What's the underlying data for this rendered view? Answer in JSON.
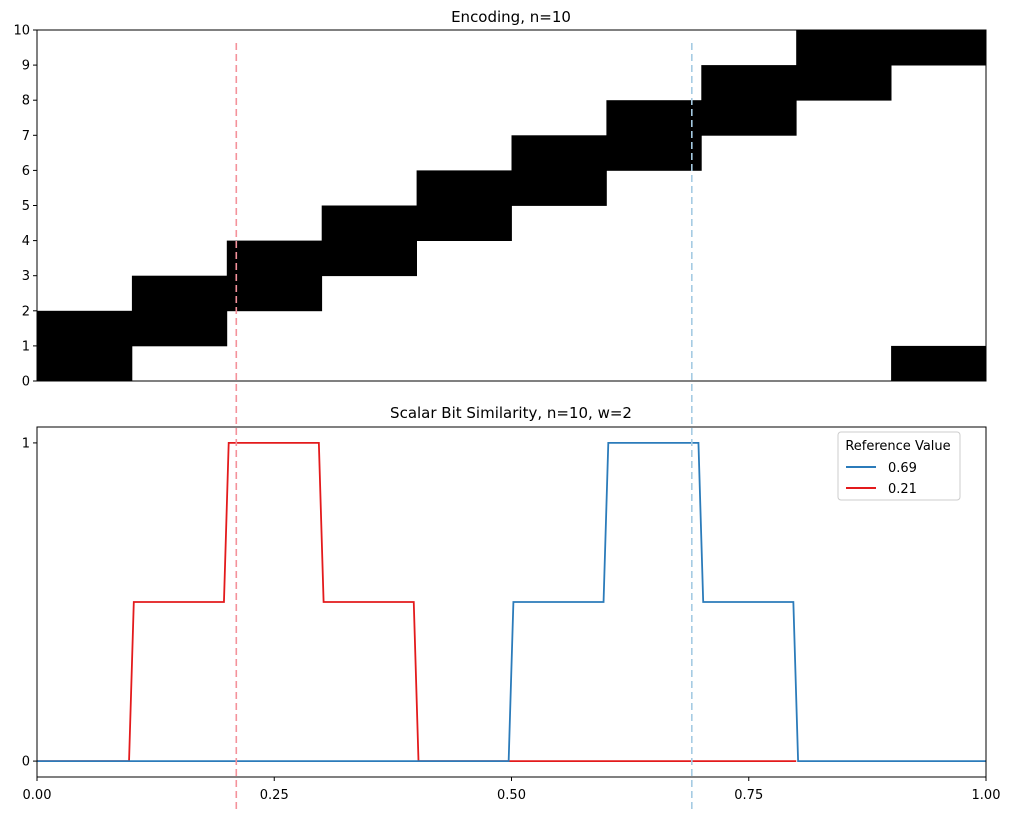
{
  "chart_data": [
    {
      "type": "heatmap",
      "title": "Encoding, n=10",
      "xlim": [
        0,
        1
      ],
      "ylim": [
        0,
        10
      ],
      "yticks": [
        "0",
        "1",
        "2",
        "3",
        "4",
        "5",
        "6",
        "7",
        "8",
        "9",
        "10"
      ],
      "bins": 10,
      "active_bits": [
        [
          0,
          1
        ],
        [
          1,
          2
        ],
        [
          2,
          3
        ],
        [
          3,
          4
        ],
        [
          4,
          5
        ],
        [
          5,
          6
        ],
        [
          6,
          7
        ],
        [
          7,
          8
        ],
        [
          8,
          9
        ],
        [
          9,
          0
        ]
      ],
      "reference_lines": [
        {
          "x": 0.21,
          "color": "#f4929b"
        },
        {
          "x": 0.69,
          "color": "#a6cbe3"
        }
      ]
    },
    {
      "type": "line",
      "title": "Scalar Bit Similarity, n=10, w=2",
      "xlim": [
        0,
        1
      ],
      "ylim": [
        -0.05,
        1.05
      ],
      "yticks": [
        "0",
        "1"
      ],
      "xticks": [
        "0.00",
        "0.25",
        "0.50",
        "0.75",
        "1.00"
      ],
      "legend": {
        "title": "Reference Value",
        "position": "top-right"
      },
      "series": [
        {
          "name": "0.69",
          "color": "#2b7bba",
          "x": [
            0,
            0.497,
            0.502,
            0.597,
            0.602,
            0.697,
            0.702,
            0.797,
            0.802,
            1
          ],
          "y": [
            0,
            0,
            0.5,
            0.5,
            1,
            1,
            0.5,
            0.5,
            0,
            0
          ]
        },
        {
          "name": "0.21",
          "color": "#e31a1c",
          "x": [
            0,
            0.097,
            0.102,
            0.197,
            0.202,
            0.297,
            0.302,
            0.397,
            0.402,
            0.5,
            0.5,
            0.8
          ],
          "y": [
            0,
            0,
            0.5,
            0.5,
            1,
            1,
            0.5,
            0.5,
            0,
            0,
            0,
            0
          ]
        }
      ],
      "reference_lines": [
        {
          "x": 0.21,
          "color": "#f4929b"
        },
        {
          "x": 0.69,
          "color": "#a6cbe3"
        }
      ]
    }
  ]
}
